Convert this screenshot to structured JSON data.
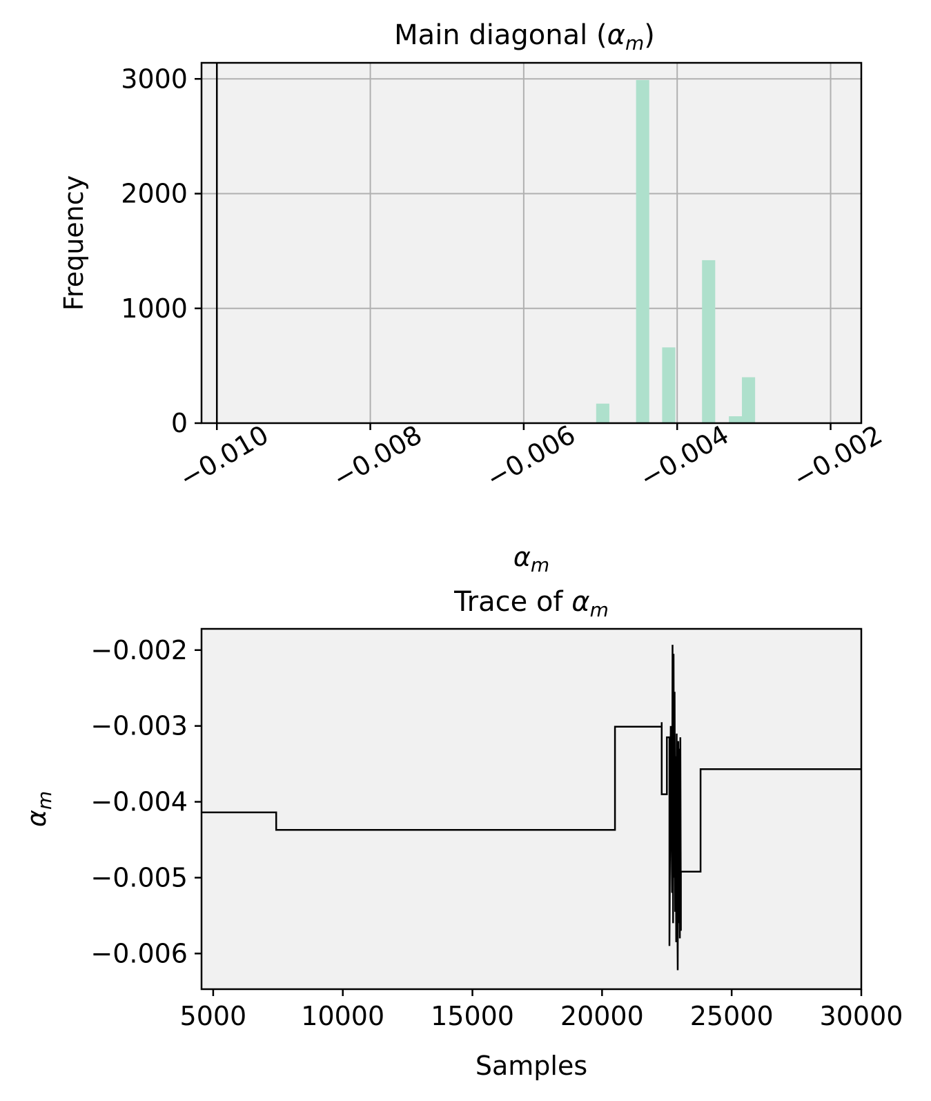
{
  "colors": {
    "axes_face": "#f1f1f1",
    "grid": "#b0b0b0",
    "bar": "#aee0cc",
    "line": "#000000",
    "frame": "#000000"
  },
  "chart_data": [
    {
      "type": "bar",
      "title_prefix": "Main diagonal (",
      "title_symbol": "α",
      "title_sub": "m",
      "title_suffix": ")",
      "xlabel_symbol": "α",
      "xlabel_sub": "m",
      "ylabel": "Frequency",
      "xlim": [
        -0.0102,
        -0.0016
      ],
      "ylim": [
        0,
        3140
      ],
      "grid": true,
      "xticks": [
        -0.01,
        -0.008,
        -0.006,
        -0.004,
        -0.002
      ],
      "xtick_labels": [
        "−0.010",
        "−0.008",
        "−0.006",
        "−0.004",
        "−0.002"
      ],
      "yticks": [
        0,
        1000,
        2000,
        3000
      ],
      "ytick_labels": [
        "0",
        "1000",
        "2000",
        "3000"
      ],
      "bin_width": 0.000172,
      "bins": [
        {
          "center": -0.00497,
          "count": 170
        },
        {
          "center": -0.00445,
          "count": 2990
        },
        {
          "center": -0.00411,
          "count": 660
        },
        {
          "center": -0.00359,
          "count": 1420
        },
        {
          "center": -0.00324,
          "count": 60
        },
        {
          "center": -0.00307,
          "count": 400
        }
      ],
      "vline_x": -0.01
    },
    {
      "type": "line",
      "title_prefix": "Trace of ",
      "title_symbol": "α",
      "title_sub": "m",
      "xlabel": "Samples",
      "ylabel_symbol": "α",
      "ylabel_sub": "m",
      "xlim": [
        4550,
        30000
      ],
      "ylim": [
        -0.00647,
        -0.00172
      ],
      "grid": false,
      "xticks": [
        5000,
        10000,
        15000,
        20000,
        25000,
        30000
      ],
      "xtick_labels": [
        "5000",
        "10000",
        "15000",
        "20000",
        "25000",
        "30000"
      ],
      "yticks": [
        -0.002,
        -0.003,
        -0.004,
        -0.005,
        -0.006
      ],
      "ytick_labels": [
        "−0.002",
        "−0.003",
        "−0.004",
        "−0.005",
        "−0.006"
      ],
      "x": [
        4550,
        7430,
        7430,
        20500,
        20500,
        22300,
        22300,
        22300,
        22500,
        22500,
        22600,
        22600,
        22650,
        22700,
        22720,
        22740,
        22760,
        22780,
        22800,
        22820,
        22840,
        22860,
        22880,
        22900,
        22920,
        22940,
        22960,
        22980,
        23000,
        23020,
        23040,
        23040,
        23800,
        23800,
        30000
      ],
      "y": [
        -0.00414,
        -0.00414,
        -0.00437,
        -0.00437,
        -0.00301,
        -0.00301,
        -0.00295,
        -0.0039,
        -0.0039,
        -0.00315,
        -0.00315,
        -0.0059,
        -0.003,
        -0.0052,
        -0.00193,
        -0.0056,
        -0.00205,
        -0.005,
        -0.00255,
        -0.00545,
        -0.0034,
        -0.00585,
        -0.0031,
        -0.0053,
        -0.00622,
        -0.0032,
        -0.0056,
        -0.0033,
        -0.0058,
        -0.00315,
        -0.0057,
        -0.00492,
        -0.00492,
        -0.00357,
        -0.00357
      ]
    }
  ]
}
